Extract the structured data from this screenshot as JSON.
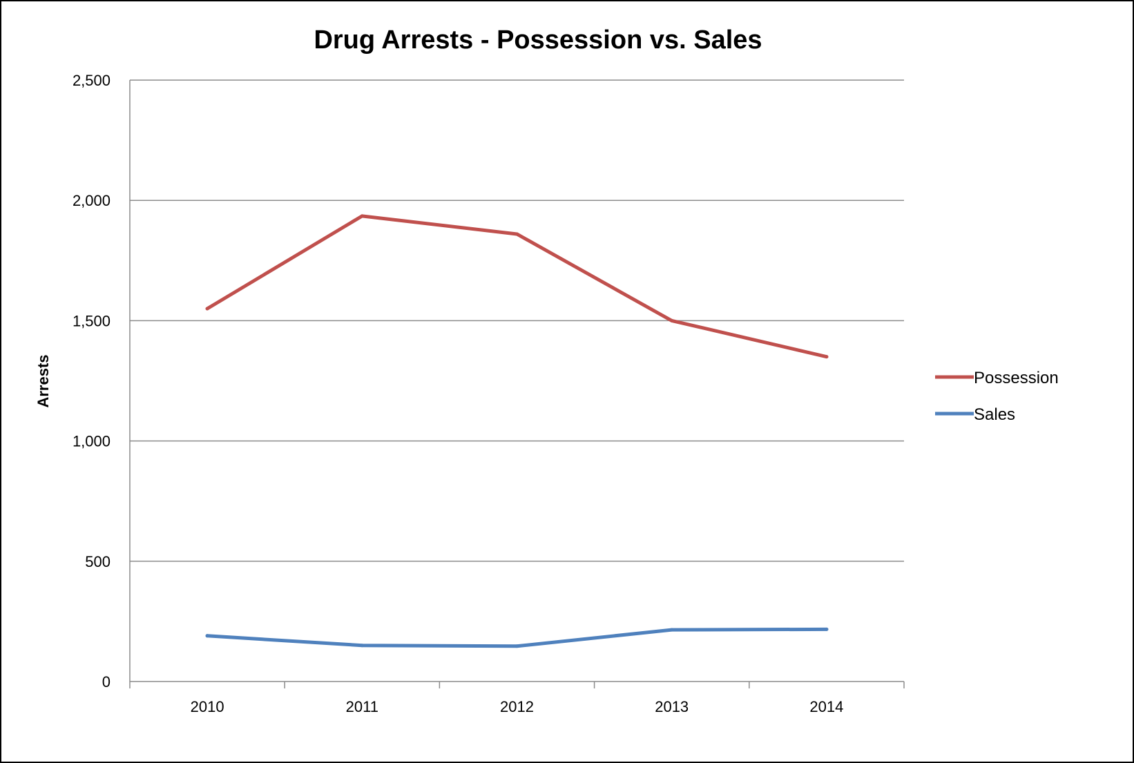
{
  "chart_data": {
    "type": "line",
    "title": "Drug Arrests - Possession vs. Sales",
    "ylabel": "Arrests",
    "xlabel": "",
    "categories": [
      "2010",
      "2011",
      "2012",
      "2013",
      "2014"
    ],
    "series": [
      {
        "name": "Possession",
        "color": "#c0504d",
        "values": [
          1550,
          1935,
          1860,
          1500,
          1350
        ]
      },
      {
        "name": "Sales",
        "color": "#4f81bd",
        "values": [
          190,
          150,
          147,
          215,
          217
        ]
      }
    ],
    "ylim": [
      0,
      2500
    ],
    "yticks": [
      0,
      500,
      1000,
      1500,
      2000,
      2500
    ],
    "ytick_labels": [
      "0",
      "500",
      "1,000",
      "1,500",
      "2,000",
      "2,500"
    ],
    "grid": true,
    "legend": "right"
  }
}
